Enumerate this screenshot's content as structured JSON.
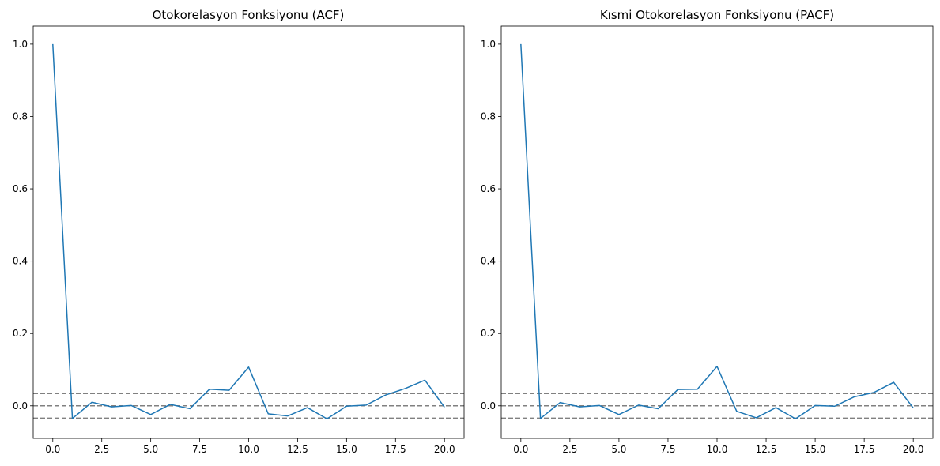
{
  "chart_data": [
    {
      "type": "line",
      "title": "Otokorelasyon Fonksiyonu (ACF)",
      "xlabel": "",
      "ylabel": "",
      "xlim": [
        -1,
        21
      ],
      "ylim": [
        -0.09,
        1.05
      ],
      "x_ticks": [
        0.0,
        2.5,
        5.0,
        7.5,
        10.0,
        12.5,
        15.0,
        17.5,
        20.0
      ],
      "x_tick_labels": [
        "0.0",
        "2.5",
        "5.0",
        "7.5",
        "10.0",
        "12.5",
        "15.0",
        "17.5",
        "20.0"
      ],
      "y_ticks": [
        0.0,
        0.2,
        0.4,
        0.6,
        0.8,
        1.0
      ],
      "y_tick_labels": [
        "0.0",
        "0.2",
        "0.4",
        "0.6",
        "0.8",
        "1.0"
      ],
      "grid": false,
      "series": [
        {
          "color": "#1f77b4",
          "x": [
            0,
            1,
            2,
            3,
            4,
            5,
            6,
            7,
            8,
            9,
            10,
            11,
            12,
            13,
            14,
            15,
            16,
            17,
            18,
            19,
            20
          ],
          "y": [
            1.0,
            -0.035,
            0.01,
            -0.003,
            0.001,
            -0.024,
            0.004,
            -0.008,
            0.046,
            0.043,
            0.107,
            -0.022,
            -0.028,
            -0.005,
            -0.036,
            -0.001,
            0.002,
            0.03,
            0.048,
            0.071,
            -0.004
          ]
        }
      ],
      "reference_lines": [
        {
          "y": 0.034,
          "style": "dashed",
          "color": "#808080"
        },
        {
          "y": 0.0,
          "style": "dashed",
          "color": "#808080"
        },
        {
          "y": -0.034,
          "style": "dashed",
          "color": "#808080"
        }
      ]
    },
    {
      "type": "line",
      "title": "Kısmi Otokorelasyon Fonksiyonu (PACF)",
      "xlabel": "",
      "ylabel": "",
      "xlim": [
        -1,
        21
      ],
      "ylim": [
        -0.09,
        1.05
      ],
      "x_ticks": [
        0.0,
        2.5,
        5.0,
        7.5,
        10.0,
        12.5,
        15.0,
        17.5,
        20.0
      ],
      "x_tick_labels": [
        "0.0",
        "2.5",
        "5.0",
        "7.5",
        "10.0",
        "12.5",
        "15.0",
        "17.5",
        "20.0"
      ],
      "y_ticks": [
        0.0,
        0.2,
        0.4,
        0.6,
        0.8,
        1.0
      ],
      "y_tick_labels": [
        "0.0",
        "0.2",
        "0.4",
        "0.6",
        "0.8",
        "1.0"
      ],
      "grid": false,
      "series": [
        {
          "color": "#1f77b4",
          "x": [
            0,
            1,
            2,
            3,
            4,
            5,
            6,
            7,
            8,
            9,
            10,
            11,
            12,
            13,
            14,
            15,
            16,
            17,
            18,
            19,
            20
          ],
          "y": [
            1.0,
            -0.035,
            0.009,
            -0.003,
            0.001,
            -0.024,
            0.002,
            -0.008,
            0.045,
            0.046,
            0.109,
            -0.015,
            -0.033,
            -0.005,
            -0.036,
            0.001,
            -0.001,
            0.025,
            0.037,
            0.065,
            -0.006
          ]
        }
      ],
      "reference_lines": [
        {
          "y": 0.034,
          "style": "dashed",
          "color": "#808080"
        },
        {
          "y": 0.0,
          "style": "dashed",
          "color": "#808080"
        },
        {
          "y": -0.034,
          "style": "dashed",
          "color": "#808080"
        }
      ]
    }
  ]
}
